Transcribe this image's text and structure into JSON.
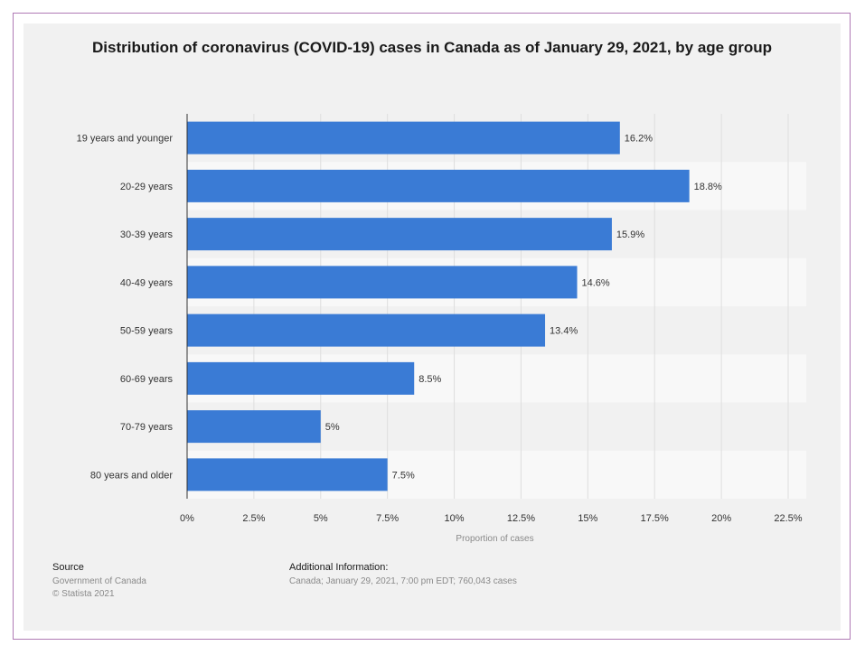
{
  "chart_data": {
    "type": "bar",
    "orientation": "horizontal",
    "title": "Distribution of coronavirus (COVID-19) cases in Canada as of January 29, 2021, by age group",
    "xlabel": "Proportion of cases",
    "ylabel": "",
    "categories": [
      "19 years and younger",
      "20-29 years",
      "30-39 years",
      "40-49 years",
      "50-59 years",
      "60-69 years",
      "70-79 years",
      "80 years and older"
    ],
    "values": [
      16.2,
      18.8,
      15.9,
      14.6,
      13.4,
      8.5,
      5,
      7.5
    ],
    "value_labels": [
      "16.2%",
      "18.8%",
      "15.9%",
      "14.6%",
      "13.4%",
      "8.5%",
      "5%",
      "7.5%"
    ],
    "xlim": [
      0,
      22.5
    ],
    "x_ticks": [
      0,
      2.5,
      5,
      7.5,
      10,
      12.5,
      15,
      17.5,
      20,
      22.5
    ],
    "x_tick_labels": [
      "0%",
      "2.5%",
      "5%",
      "7.5%",
      "10%",
      "12.5%",
      "15%",
      "17.5%",
      "20%",
      "22.5%"
    ],
    "grid": true,
    "legend": "none",
    "bar_color": "#3a7bd5"
  },
  "footer": {
    "source_heading": "Source",
    "source_lines": [
      "Government of Canada",
      "© Statista 2021"
    ],
    "info_heading": "Additional Information:",
    "info_text": "Canada; January 29, 2021, 7:00 pm EDT; 760,043 cases"
  }
}
